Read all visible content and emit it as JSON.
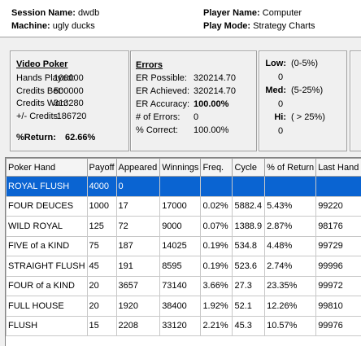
{
  "header": {
    "session_label": "Session Name:",
    "session": "dwdb",
    "machine_label": "Machine:",
    "machine": "ugly ducks",
    "player_label": "Player Name:",
    "player": "Computer",
    "mode_label": "Play Mode:",
    "mode": "Strategy Charts"
  },
  "video_poker": {
    "title": "Video Poker",
    "stats": [
      [
        "Hands Played:",
        "100000"
      ],
      [
        "Credits Bet:",
        "500000"
      ],
      [
        "Credits Won:",
        "313280"
      ],
      [
        "+/- Credits:",
        "-186720"
      ]
    ],
    "return_label": "%Return:",
    "return": "62.66%"
  },
  "errors": {
    "title": "Errors",
    "stats": [
      [
        "ER Possible:",
        "320214.70"
      ],
      [
        "ER Achieved:",
        "320214.70"
      ],
      [
        "ER Accuracy:",
        "100.00%"
      ],
      [
        "# of Errors:",
        "0"
      ],
      [
        "% Correct:",
        "100.00%"
      ]
    ]
  },
  "ranges": {
    "items": [
      [
        "Low:",
        "(0-5%)",
        "0"
      ],
      [
        "Med:",
        "(5-25%)",
        "0"
      ],
      [
        "Hi:",
        "( > 25%)",
        "0"
      ]
    ]
  },
  "table": {
    "columns": [
      "Poker Hand",
      "Payoff",
      "Appeared",
      "Winnings",
      "Freq.",
      "Cycle",
      "% of Return",
      "Last Hand"
    ],
    "rows": [
      [
        "ROYAL FLUSH",
        "4000",
        "0"
      ],
      [
        "FOUR DEUCES",
        "1000",
        "17",
        "17000",
        "0.02%",
        "5882.4",
        "5.43%",
        "99220"
      ],
      [
        "WILD ROYAL",
        "125",
        "72",
        "9000",
        "0.07%",
        "1388.9",
        "2.87%",
        "98176"
      ],
      [
        "FIVE of a KIND",
        "75",
        "187",
        "14025",
        "0.19%",
        "534.8",
        "4.48%",
        "99729"
      ],
      [
        "STRAIGHT FLUSH",
        "45",
        "191",
        "8595",
        "0.19%",
        "523.6",
        "2.74%",
        "99996"
      ],
      [
        "FOUR of a KIND",
        "20",
        "3657",
        "73140",
        "3.66%",
        "27.3",
        "23.35%",
        "99972"
      ],
      [
        "FULL HOUSE",
        "20",
        "1920",
        "38400",
        "1.92%",
        "52.1",
        "12.26%",
        "99810"
      ],
      [
        "FLUSH",
        "15",
        "2208",
        "33120",
        "2.21%",
        "45.3",
        "10.57%",
        "99976"
      ]
    ]
  }
}
